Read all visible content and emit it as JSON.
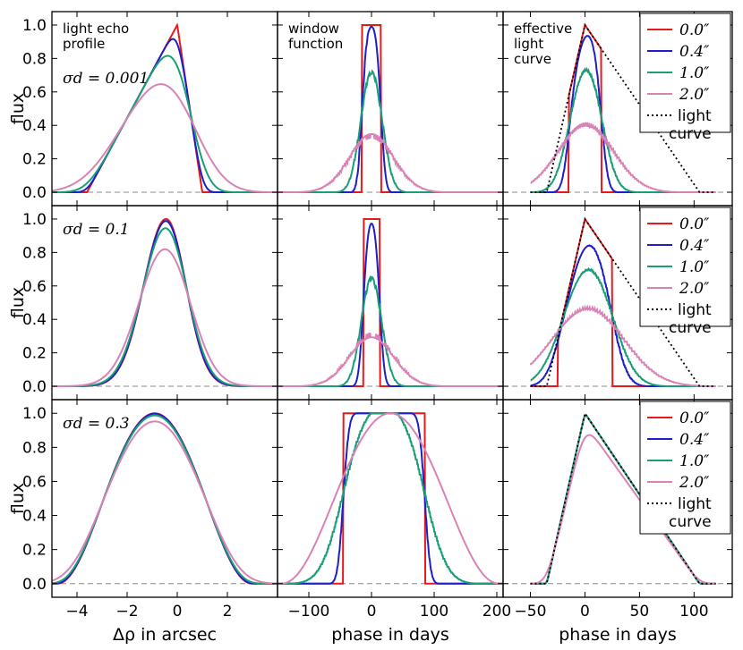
{
  "chart_data": {
    "type": "line",
    "grid": false,
    "ylabel": "flux",
    "yticks": [
      0.0,
      0.2,
      0.4,
      0.6,
      0.8,
      1.0
    ],
    "ytick_labels": [
      "0.0",
      "0.2",
      "0.4",
      "0.6",
      "0.8",
      "1.0"
    ],
    "ylim": [
      -0.08,
      1.08
    ],
    "columns": [
      {
        "xlabel": "Δρ in arcsec",
        "xlim": [
          -5,
          4
        ],
        "xticks": [
          -4,
          -2,
          0,
          2
        ],
        "xtick_labels": [
          "−4",
          "−2",
          "0",
          "2"
        ],
        "panel_title": "light echo profile"
      },
      {
        "xlabel": "phase in days",
        "xlim": [
          -150,
          210
        ],
        "xticks": [
          -100,
          0,
          100,
          200
        ],
        "xtick_labels": [
          "−100",
          "0",
          "100",
          "200"
        ],
        "panel_title": "window function"
      },
      {
        "xlabel": "phase in days",
        "xlim": [
          -75,
          135
        ],
        "xticks": [
          -50,
          0,
          50,
          100
        ],
        "xtick_labels": [
          "−50",
          "0",
          "50",
          "100"
        ],
        "panel_title": "effective light curve"
      }
    ],
    "rows": [
      {
        "sigma_label": "σd = 0.001",
        "sigma": 0.001
      },
      {
        "sigma_label": "σd = 0.1",
        "sigma": 0.1
      },
      {
        "sigma_label": "σd = 0.3",
        "sigma": 0.3
      }
    ],
    "series": [
      {
        "name": "0.0″",
        "color": "#e41a1c",
        "style": "solid"
      },
      {
        "name": "0.4″",
        "color": "#1f1fc8",
        "style": "solid"
      },
      {
        "name": "1.0″",
        "color": "#1b9e77",
        "style": "solid"
      },
      {
        "name": "2.0″",
        "color": "#d982b5",
        "style": "solid"
      },
      {
        "name": "light curve",
        "color": "#000000",
        "style": "dotted"
      }
    ],
    "light_curve": {
      "x": [
        -50,
        -35,
        0,
        105,
        120
      ],
      "y": [
        0,
        0,
        1.0,
        0,
        0
      ]
    },
    "legend_location": "top-right"
  }
}
